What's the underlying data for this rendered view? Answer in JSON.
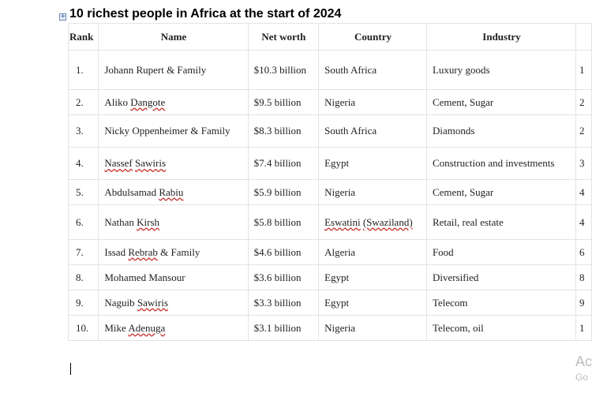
{
  "document": {
    "title": "10 richest people in Africa at the start of 2024",
    "move_handle_glyph": "+"
  },
  "table": {
    "headers": [
      "Rank",
      "Name",
      "Net worth",
      "Country",
      "Industry",
      ""
    ],
    "rows": [
      {
        "rank": "1.",
        "name": "Johann Rupert & Family",
        "net_worth": "$10.3 billion",
        "country": "South Africa",
        "industry": "Luxury goods",
        "extra": "1"
      },
      {
        "rank": "2.",
        "name": "Aliko Dangote",
        "net_worth": "$9.5 billion",
        "country": "Nigeria",
        "industry": "Cement, Sugar",
        "extra": "2"
      },
      {
        "rank": "3.",
        "name": "Nicky Oppenheimer & Family",
        "net_worth": "$8.3 billion",
        "country": "South Africa",
        "industry": "Diamonds",
        "extra": "2"
      },
      {
        "rank": "4.",
        "name": "Nassef Sawiris",
        "net_worth": "$7.4 billion",
        "country": "Egypt",
        "industry": "Construction and investments",
        "extra": "3"
      },
      {
        "rank": "5.",
        "name": "Abdulsamad Rabiu",
        "net_worth": "$5.9 billion",
        "country": "Nigeria",
        "industry": "Cement, Sugar",
        "extra": "4"
      },
      {
        "rank": "6.",
        "name": "Nathan Kirsh",
        "net_worth": "$5.8 billion",
        "country": "Eswatini (Swaziland)",
        "industry": "Retail, real estate",
        "extra": "4"
      },
      {
        "rank": "7.",
        "name": "Issad Rebrab & Family",
        "net_worth": "$4.6 billion",
        "country": "Algeria",
        "industry": "Food",
        "extra": "6"
      },
      {
        "rank": "8.",
        "name": "Mohamed Mansour",
        "net_worth": "$3.6 billion",
        "country": "Egypt",
        "industry": "Diversified",
        "extra": "8"
      },
      {
        "rank": "9.",
        "name": "Naguib Sawiris",
        "net_worth": "$3.3 billion",
        "country": "Egypt",
        "industry": "Telecom",
        "extra": "9"
      },
      {
        "rank": "10.",
        "name": "Mike Adenuga",
        "net_worth": "$3.1 billion",
        "country": "Nigeria",
        "industry": "Telecom, oil",
        "extra": "1"
      }
    ]
  },
  "watermark": {
    "line1": "Ac",
    "line2": "Go"
  }
}
